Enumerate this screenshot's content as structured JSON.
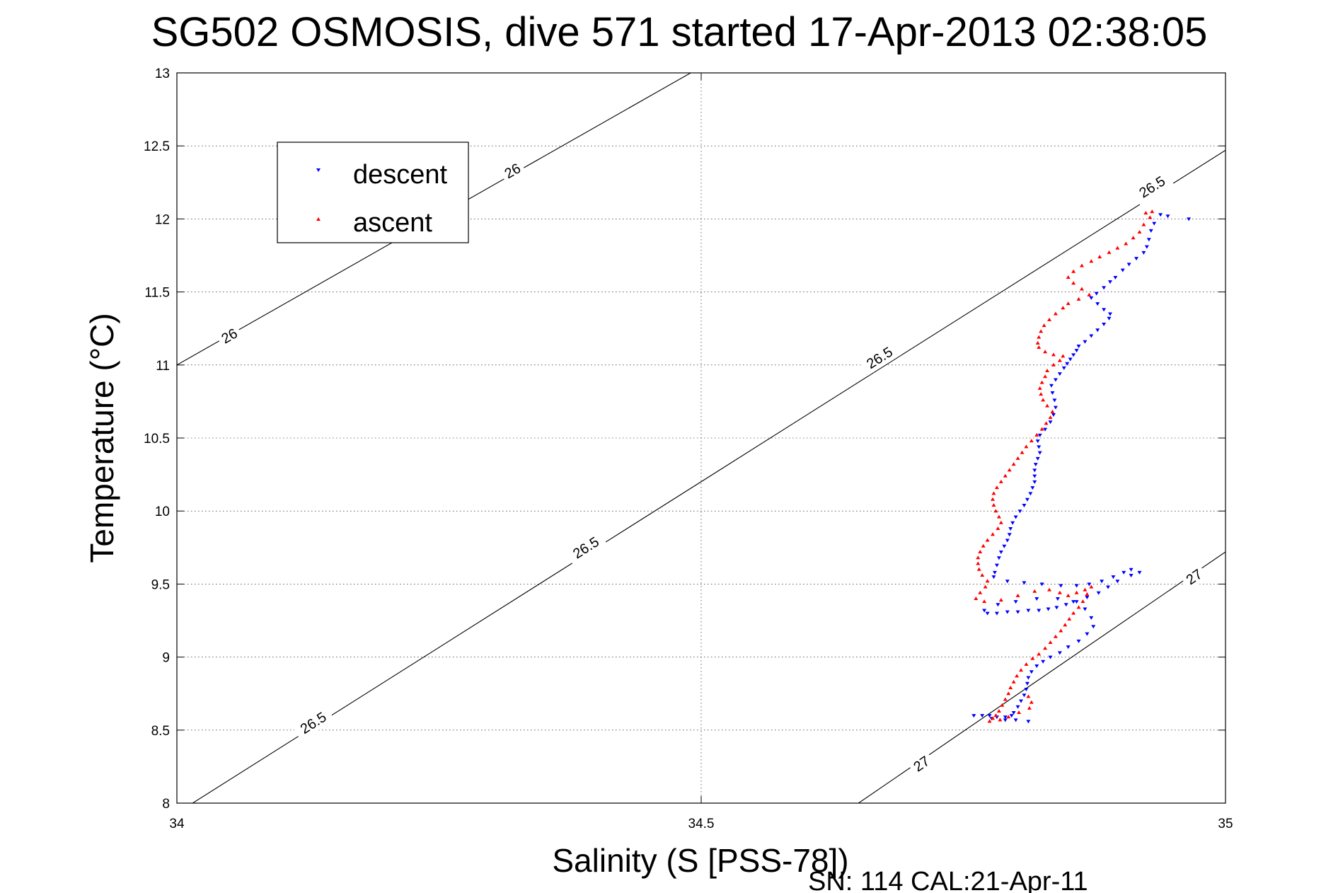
{
  "chart_data": {
    "type": "scatter",
    "title": "SG502 OSMOSIS, dive 571 started 17-Apr-2013 02:38:05",
    "xlabel": "Salinity (S [PSS-78])",
    "ylabel": "Temperature (°C)",
    "xlim": [
      34,
      35
    ],
    "ylim": [
      8,
      13
    ],
    "xticks": [
      34,
      34.5,
      35
    ],
    "yticks": [
      8,
      8.5,
      9,
      9.5,
      10,
      10.5,
      11,
      11.5,
      12,
      12.5,
      13
    ],
    "xtick_labels": [
      "34",
      "34.5",
      "35"
    ],
    "ytick_labels": [
      "8",
      "8.5",
      "9",
      "9.5",
      "10",
      "10.5",
      "11",
      "11.5",
      "12",
      "12.5",
      "13"
    ],
    "grid": true,
    "legend_position": "top-left",
    "footer": "SN: 114  CAL:21-Apr-11",
    "contours": [
      {
        "label": "26",
        "line": [
          [
            34.0,
            11.0
          ],
          [
            34.49,
            13.0
          ]
        ],
        "label_positions": [
          [
            34.05,
            11.2
          ],
          [
            34.32,
            12.33
          ]
        ]
      },
      {
        "label": "26.5",
        "line": [
          [
            34.015,
            8.0
          ],
          [
            35.0,
            12.47
          ]
        ],
        "label_positions": [
          [
            34.13,
            8.55
          ],
          [
            34.39,
            9.75
          ],
          [
            34.67,
            11.05
          ],
          [
            34.93,
            12.22
          ]
        ]
      },
      {
        "label": "27",
        "line": [
          [
            34.65,
            8.0
          ],
          [
            35.0,
            9.72
          ]
        ],
        "label_positions": [
          [
            34.71,
            8.27
          ],
          [
            34.97,
            9.55
          ]
        ]
      }
    ],
    "series": [
      {
        "name": "descent",
        "color": "#0000ff",
        "marker": "triangle-down",
        "points": [
          [
            34.938,
            12.03
          ],
          [
            34.945,
            12.02
          ],
          [
            34.932,
            11.97
          ],
          [
            34.929,
            11.92
          ],
          [
            34.927,
            11.86
          ],
          [
            34.925,
            11.81
          ],
          [
            34.922,
            11.77
          ],
          [
            34.915,
            11.73
          ],
          [
            34.908,
            11.69
          ],
          [
            34.902,
            11.65
          ],
          [
            34.895,
            11.6
          ],
          [
            34.89,
            11.57
          ],
          [
            34.884,
            11.53
          ],
          [
            34.877,
            11.49
          ],
          [
            34.872,
            11.46
          ],
          [
            34.878,
            11.42
          ],
          [
            34.884,
            11.38
          ],
          [
            34.89,
            11.35
          ],
          [
            34.889,
            11.32
          ],
          [
            34.884,
            11.28
          ],
          [
            34.878,
            11.24
          ],
          [
            34.872,
            11.2
          ],
          [
            34.866,
            11.16
          ],
          [
            34.86,
            11.13
          ],
          [
            34.858,
            11.1
          ],
          [
            34.855,
            11.07
          ],
          [
            34.852,
            11.04
          ],
          [
            34.849,
            11.01
          ],
          [
            34.846,
            10.98
          ],
          [
            34.842,
            10.94
          ],
          [
            34.838,
            10.9
          ],
          [
            34.834,
            10.86
          ],
          [
            34.835,
            10.81
          ],
          [
            34.837,
            10.76
          ],
          [
            34.838,
            10.71
          ],
          [
            34.836,
            10.66
          ],
          [
            34.833,
            10.61
          ],
          [
            34.828,
            10.56
          ],
          [
            34.823,
            10.52
          ],
          [
            34.821,
            10.48
          ],
          [
            34.822,
            10.44
          ],
          [
            34.823,
            10.4
          ],
          [
            34.821,
            10.36
          ],
          [
            34.819,
            10.32
          ],
          [
            34.818,
            10.28
          ],
          [
            34.818,
            10.24
          ],
          [
            34.818,
            10.2
          ],
          [
            34.816,
            10.16
          ],
          [
            34.814,
            10.12
          ],
          [
            34.811,
            10.08
          ],
          [
            34.808,
            10.04
          ],
          [
            34.804,
            10.0
          ],
          [
            34.8,
            9.96
          ],
          [
            34.797,
            9.92
          ],
          [
            34.795,
            9.88
          ],
          [
            34.794,
            9.84
          ],
          [
            34.792,
            9.8
          ],
          [
            34.789,
            9.76
          ],
          [
            34.786,
            9.72
          ],
          [
            34.784,
            9.68
          ],
          [
            34.782,
            9.63
          ],
          [
            34.78,
            9.58
          ],
          [
            34.779,
            9.55
          ],
          [
            34.792,
            9.52
          ],
          [
            34.808,
            9.51
          ],
          [
            34.825,
            9.5
          ],
          [
            34.843,
            9.49
          ],
          [
            34.858,
            9.49
          ],
          [
            34.87,
            9.5
          ],
          [
            34.882,
            9.52
          ],
          [
            34.893,
            9.55
          ],
          [
            34.903,
            9.58
          ],
          [
            34.91,
            9.6
          ],
          [
            34.918,
            9.58
          ],
          [
            34.91,
            9.56
          ],
          [
            34.897,
            9.52
          ],
          [
            34.888,
            9.48
          ],
          [
            34.879,
            9.44
          ],
          [
            34.868,
            9.41
          ],
          [
            34.858,
            9.38
          ],
          [
            34.848,
            9.36
          ],
          [
            34.839,
            9.34
          ],
          [
            34.831,
            9.33
          ],
          [
            34.822,
            9.32
          ],
          [
            34.812,
            9.32
          ],
          [
            34.802,
            9.31
          ],
          [
            34.792,
            9.31
          ],
          [
            34.782,
            9.3
          ],
          [
            34.773,
            9.3
          ],
          [
            34.77,
            9.32
          ],
          [
            34.783,
            9.36
          ],
          [
            34.8,
            9.38
          ],
          [
            34.82,
            9.4
          ],
          [
            34.84,
            9.4
          ],
          [
            34.855,
            9.38
          ],
          [
            34.866,
            9.33
          ],
          [
            34.872,
            9.27
          ],
          [
            34.874,
            9.21
          ],
          [
            34.868,
            9.16
          ],
          [
            34.86,
            9.11
          ],
          [
            34.85,
            9.07
          ],
          [
            34.842,
            9.03
          ],
          [
            34.833,
            9.0
          ],
          [
            34.826,
            8.97
          ],
          [
            34.82,
            8.94
          ],
          [
            34.815,
            8.9
          ],
          [
            34.812,
            8.86
          ],
          [
            34.811,
            8.82
          ],
          [
            34.81,
            8.78
          ],
          [
            34.808,
            8.74
          ],
          [
            34.805,
            8.7
          ],
          [
            34.802,
            8.66
          ],
          [
            34.798,
            8.62
          ],
          [
            34.796,
            8.6
          ],
          [
            34.79,
            8.59
          ],
          [
            34.782,
            8.59
          ],
          [
            34.775,
            8.6
          ],
          [
            34.768,
            8.6
          ],
          [
            34.777,
            8.58
          ],
          [
            34.79,
            8.57
          ],
          [
            34.8,
            8.57
          ],
          [
            34.812,
            8.56
          ],
          [
            34.76,
            8.6
          ],
          [
            34.965,
            12.0
          ]
        ]
      },
      {
        "name": "ascent",
        "color": "#ff0000",
        "marker": "triangle-up",
        "points": [
          [
            34.924,
            12.04
          ],
          [
            34.93,
            12.05
          ],
          [
            34.928,
            12.01
          ],
          [
            34.922,
            11.96
          ],
          [
            34.918,
            11.91
          ],
          [
            34.912,
            11.87
          ],
          [
            34.905,
            11.83
          ],
          [
            34.897,
            11.8
          ],
          [
            34.889,
            11.77
          ],
          [
            34.88,
            11.74
          ],
          [
            34.872,
            11.71
          ],
          [
            34.863,
            11.68
          ],
          [
            34.855,
            11.64
          ],
          [
            34.85,
            11.6
          ],
          [
            34.855,
            11.56
          ],
          [
            34.863,
            11.52
          ],
          [
            34.87,
            11.48
          ],
          [
            34.86,
            11.45
          ],
          [
            34.85,
            11.42
          ],
          [
            34.845,
            11.39
          ],
          [
            34.838,
            11.35
          ],
          [
            34.832,
            11.31
          ],
          [
            34.827,
            11.27
          ],
          [
            34.824,
            11.23
          ],
          [
            34.822,
            11.19
          ],
          [
            34.821,
            11.15
          ],
          [
            34.822,
            11.12
          ],
          [
            34.828,
            11.09
          ],
          [
            34.836,
            11.07
          ],
          [
            34.845,
            11.06
          ],
          [
            34.842,
            11.03
          ],
          [
            34.836,
            11.0
          ],
          [
            34.83,
            10.96
          ],
          [
            34.828,
            10.92
          ],
          [
            34.825,
            10.88
          ],
          [
            34.823,
            10.84
          ],
          [
            34.824,
            10.8
          ],
          [
            34.826,
            10.76
          ],
          [
            34.83,
            10.72
          ],
          [
            34.835,
            10.68
          ],
          [
            34.833,
            10.64
          ],
          [
            34.829,
            10.6
          ],
          [
            34.825,
            10.56
          ],
          [
            34.82,
            10.52
          ],
          [
            34.815,
            10.48
          ],
          [
            34.81,
            10.44
          ],
          [
            34.806,
            10.4
          ],
          [
            34.802,
            10.36
          ],
          [
            34.798,
            10.32
          ],
          [
            34.794,
            10.28
          ],
          [
            34.79,
            10.24
          ],
          [
            34.786,
            10.2
          ],
          [
            34.782,
            10.16
          ],
          [
            34.779,
            10.12
          ],
          [
            34.778,
            10.08
          ],
          [
            34.779,
            10.04
          ],
          [
            34.781,
            10.0
          ],
          [
            34.784,
            9.96
          ],
          [
            34.786,
            9.92
          ],
          [
            34.783,
            9.88
          ],
          [
            34.778,
            9.84
          ],
          [
            34.773,
            9.8
          ],
          [
            34.769,
            9.76
          ],
          [
            34.766,
            9.72
          ],
          [
            34.764,
            9.68
          ],
          [
            34.764,
            9.64
          ],
          [
            34.765,
            9.6
          ],
          [
            34.768,
            9.56
          ],
          [
            34.773,
            9.52
          ],
          [
            34.771,
            9.48
          ],
          [
            34.766,
            9.44
          ],
          [
            34.762,
            9.4
          ],
          [
            34.77,
            9.38
          ],
          [
            34.786,
            9.39
          ],
          [
            34.802,
            9.42
          ],
          [
            34.818,
            9.45
          ],
          [
            34.832,
            9.46
          ],
          [
            34.842,
            9.44
          ],
          [
            34.85,
            9.42
          ],
          [
            34.858,
            9.44
          ],
          [
            34.866,
            9.46
          ],
          [
            34.872,
            9.48
          ],
          [
            34.868,
            9.43
          ],
          [
            34.864,
            9.38
          ],
          [
            34.86,
            9.34
          ],
          [
            34.855,
            9.3
          ],
          [
            34.851,
            9.26
          ],
          [
            34.847,
            9.22
          ],
          [
            34.843,
            9.18
          ],
          [
            34.838,
            9.14
          ],
          [
            34.833,
            9.1
          ],
          [
            34.828,
            9.06
          ],
          [
            34.822,
            9.02
          ],
          [
            34.816,
            8.99
          ],
          [
            34.81,
            8.95
          ],
          [
            34.805,
            8.91
          ],
          [
            34.801,
            8.87
          ],
          [
            34.798,
            8.83
          ],
          [
            34.795,
            8.79
          ],
          [
            34.793,
            8.75
          ],
          [
            34.79,
            8.71
          ],
          [
            34.787,
            8.67
          ],
          [
            34.784,
            8.63
          ],
          [
            34.781,
            8.6
          ],
          [
            34.778,
            8.58
          ],
          [
            34.775,
            8.56
          ],
          [
            34.785,
            8.57
          ],
          [
            34.793,
            8.59
          ],
          [
            34.803,
            8.62
          ],
          [
            34.813,
            8.65
          ],
          [
            34.815,
            8.69
          ],
          [
            34.812,
            8.73
          ]
        ]
      }
    ]
  }
}
